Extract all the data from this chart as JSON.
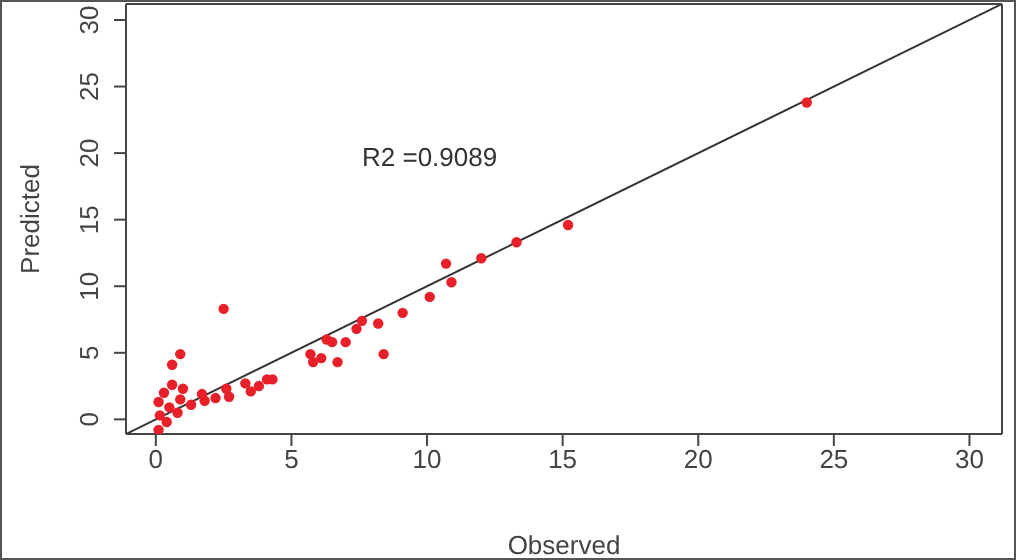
{
  "chart_data": {
    "type": "scatter",
    "xlabel": "Observed",
    "ylabel": "Predicted",
    "annotations": [
      "R2 =0.9089"
    ],
    "xlim": [
      -1.1,
      31.2
    ],
    "ylim": [
      -1.1,
      31.2
    ],
    "xticks": [
      0,
      5,
      10,
      15,
      20,
      25,
      30
    ],
    "yticks": [
      0,
      5,
      10,
      15,
      20,
      25,
      30
    ],
    "marker": "circle",
    "series": [
      {
        "type": "scatter",
        "color": "#e8202a",
        "x": [
          24.0,
          15.2,
          13.3,
          12.0,
          10.7,
          10.9,
          10.1,
          9.1,
          8.2,
          7.6,
          7.4,
          8.4,
          7.0,
          6.3,
          6.5,
          6.7,
          6.1,
          5.7,
          5.8,
          2.5,
          0.9,
          0.6,
          4.3,
          4.1,
          3.5,
          3.8,
          3.3,
          0.1,
          0.15,
          0.1,
          0.3,
          0.6,
          1.0,
          0.5,
          0.9,
          0.4,
          0.8,
          1.3,
          1.7,
          1.8,
          2.2,
          2.6,
          2.7
        ],
        "values": [
          23.8,
          14.6,
          13.3,
          12.1,
          11.7,
          10.3,
          9.2,
          8.0,
          7.2,
          7.4,
          6.8,
          4.9,
          5.8,
          6.0,
          5.8,
          4.3,
          4.6,
          4.9,
          4.3,
          8.3,
          4.9,
          4.1,
          3.0,
          3.0,
          2.1,
          2.5,
          2.7,
          -0.8,
          0.3,
          1.3,
          2.0,
          2.6,
          2.3,
          0.9,
          1.5,
          -0.2,
          0.5,
          1.1,
          1.9,
          1.4,
          1.6,
          2.3,
          1.7
        ]
      },
      {
        "type": "line",
        "color": "#333333",
        "marker": "none",
        "x": [
          -1.1,
          31.2
        ],
        "values": [
          -1.1,
          31.2
        ]
      }
    ]
  }
}
